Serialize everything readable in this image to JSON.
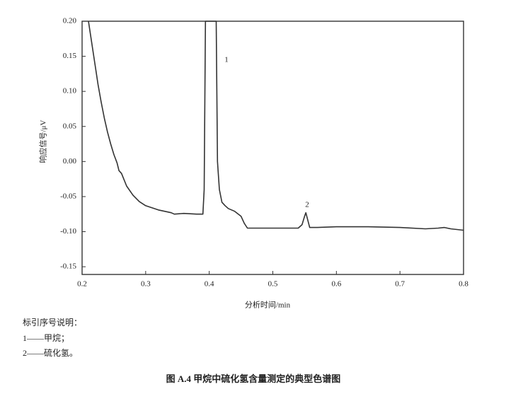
{
  "chart_data": {
    "type": "line",
    "title": "图 A.4   甲烷中硫化氢含量测定的典型色谱图",
    "x_label": "分析时间/min",
    "y_label": "响应信号/μV",
    "annotations": [
      "1",
      "2"
    ],
    "notes": [
      "标引序号说明：",
      "1——甲烷；",
      "2——硫化氢。"
    ],
    "xlim": [
      0.2,
      0.8
    ],
    "xticks": [
      0.2,
      0.3,
      0.4,
      0.5,
      0.6,
      0.7,
      0.8
    ],
    "ylim": [
      -0.161,
      0.2
    ],
    "yticks": [
      {
        "value": 0.2,
        "label": "0.20"
      },
      {
        "value": 0.15,
        "label": "0.15"
      },
      {
        "value": 0.1,
        "label": "0.10"
      },
      {
        "value": 0.05,
        "label": "0.05"
      },
      {
        "value": 0,
        "label": "0.00"
      },
      {
        "value": -0.05,
        "label": "-0.05"
      },
      {
        "value": -0.1,
        "label": "-0.10"
      },
      {
        "value": -0.15,
        "label": "-0.15"
      }
    ],
    "grid": false,
    "series": [
      {
        "color": "#333333",
        "x": [
          0.21,
          0.215,
          0.22,
          0.225,
          0.23,
          0.235,
          0.24,
          0.245,
          0.25,
          0.255,
          0.258,
          0.262,
          0.27,
          0.28,
          0.29,
          0.3,
          0.32,
          0.34,
          0.345,
          0.36,
          0.38,
          0.39,
          0.392,
          0.394,
          0.411,
          0.413,
          0.416,
          0.42,
          0.425,
          0.43,
          0.44,
          0.45,
          0.455,
          0.46,
          0.48,
          0.5,
          0.52,
          0.54,
          0.546,
          0.55,
          0.552,
          0.554,
          0.558,
          0.57,
          0.6,
          0.65,
          0.7,
          0.74,
          0.76,
          0.77,
          0.78,
          0.8
        ],
        "values": [
          0.2,
          0.17,
          0.14,
          0.11,
          0.085,
          0.062,
          0.042,
          0.025,
          0.01,
          -0.002,
          -0.013,
          -0.017,
          -0.035,
          -0.048,
          -0.057,
          -0.063,
          -0.069,
          -0.073,
          -0.075,
          -0.074,
          -0.075,
          -0.075,
          -0.04,
          0.2,
          0.2,
          0.0,
          -0.04,
          -0.058,
          -0.063,
          -0.067,
          -0.071,
          -0.078,
          -0.088,
          -0.095,
          -0.095,
          -0.095,
          -0.095,
          -0.095,
          -0.09,
          -0.078,
          -0.073,
          -0.08,
          -0.094,
          -0.094,
          -0.093,
          -0.093,
          -0.094,
          -0.096,
          -0.095,
          -0.094,
          -0.096,
          -0.098
        ]
      }
    ]
  }
}
